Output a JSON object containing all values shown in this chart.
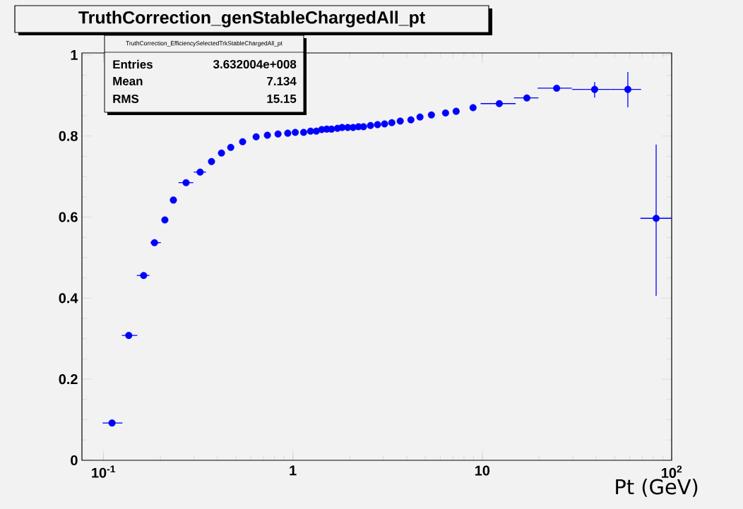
{
  "chart_data": {
    "type": "scatter",
    "title": "TruthCorrection_genStableChargedAll_pt",
    "xlabel": "Pt (GeV)",
    "annotations": [
      "TruthCorrection_EfficiencySelectedTrkStableChargedAll_pt",
      "Entries",
      "3.632004e+008",
      "Mean",
      "7.134",
      "RMS",
      "15.15"
    ],
    "log": "x",
    "marker": "circle",
    "xlim": [
      0.077,
      100
    ],
    "ylim": [
      0,
      1.005
    ],
    "xticks": [
      {
        "value": 0.1,
        "label": "10$^{-1}$"
      },
      1,
      10,
      {
        "value": 100,
        "label": "10$^{2}$"
      }
    ],
    "yticks": [
      0,
      0.2,
      0.4,
      0.6,
      0.8,
      1
    ],
    "series": [
      {
        "color": "#0000ff",
        "x": [
          0.111,
          0.136,
          0.163,
          0.186,
          0.211,
          0.234,
          0.273,
          0.324,
          0.372,
          0.42,
          0.47,
          0.543,
          0.64,
          0.734,
          0.835,
          0.94,
          1.03,
          1.14,
          1.24,
          1.33,
          1.42,
          1.51,
          1.6,
          1.72,
          1.82,
          1.95,
          2.08,
          2.22,
          2.36,
          2.57,
          2.8,
          3.05,
          3.33,
          3.69,
          4.2,
          4.69,
          5.39,
          6.4,
          7.28,
          8.94,
          12.3,
          17.2,
          24.7,
          39.2,
          58.7,
          82.8
        ],
        "values": [
          0.092,
          0.308,
          0.456,
          0.537,
          0.593,
          0.642,
          0.685,
          0.711,
          0.737,
          0.758,
          0.772,
          0.786,
          0.798,
          0.802,
          0.805,
          0.807,
          0.809,
          0.809,
          0.812,
          0.812,
          0.816,
          0.817,
          0.817,
          0.819,
          0.821,
          0.821,
          0.821,
          0.823,
          0.823,
          0.826,
          0.828,
          0.83,
          0.833,
          0.837,
          0.84,
          0.847,
          0.852,
          0.857,
          0.861,
          0.87,
          0.88,
          0.894,
          0.918,
          0.915,
          0.915,
          0.597
        ],
        "errors": [
          null,
          null,
          null,
          null,
          null,
          null,
          null,
          null,
          null,
          null,
          null,
          null,
          null,
          null,
          null,
          null,
          null,
          null,
          null,
          null,
          null,
          null,
          null,
          null,
          null,
          null,
          null,
          null,
          null,
          null,
          null,
          null,
          null,
          null,
          null,
          null,
          null,
          null,
          null,
          null,
          null,
          null,
          null,
          [
            0.895,
            0.933
          ],
          [
            0.871,
            0.958
          ],
          [
            0.406,
            0.779
          ]
        ],
        "xerrors": [
          [
            0.099,
            0.126
          ],
          [
            0.125,
            0.151
          ],
          [
            0.15,
            0.175
          ],
          [
            0.177,
            0.201
          ],
          null,
          null,
          [
            0.249,
            0.298
          ],
          [
            0.3,
            0.348
          ],
          null,
          null,
          null,
          null,
          null,
          null,
          null,
          null,
          null,
          null,
          null,
          null,
          null,
          null,
          null,
          null,
          null,
          null,
          null,
          null,
          null,
          null,
          null,
          null,
          null,
          null,
          null,
          null,
          null,
          null,
          null,
          null,
          [
            9.8,
            15.0
          ],
          [
            14.7,
            19.8
          ],
          [
            19.6,
            29.7
          ],
          [
            29.8,
            47.6
          ],
          [
            47.6,
            69
          ],
          [
            68.4,
            100
          ]
        ]
      }
    ]
  }
}
